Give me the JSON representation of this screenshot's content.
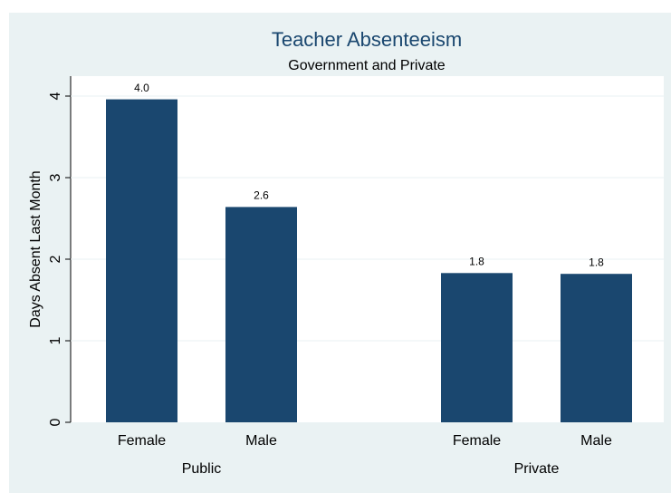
{
  "chart_data": {
    "type": "bar",
    "title": "Teacher Absenteeism",
    "subtitle": "Government and Private",
    "y_label": "Days Absent Last Month",
    "groups": [
      {
        "name": "Public",
        "categories": [
          "Female",
          "Male"
        ],
        "values": [
          3.96,
          2.64
        ],
        "value_labels": [
          "4.0",
          "2.6"
        ]
      },
      {
        "name": "Private",
        "categories": [
          "Female",
          "Male"
        ],
        "values": [
          1.83,
          1.82
        ],
        "value_labels": [
          "1.8",
          "1.8"
        ]
      }
    ],
    "color": "#1a476f",
    "ylim": [
      0,
      4.2
    ],
    "yticks": [
      0,
      1,
      2,
      3,
      4
    ],
    "grid": true
  }
}
